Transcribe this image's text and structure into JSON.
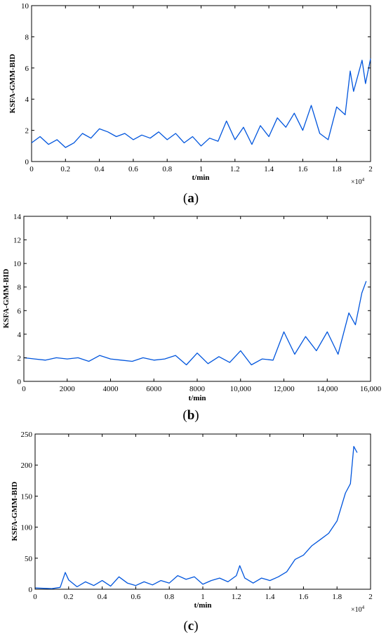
{
  "chart_data": [
    {
      "type": "line",
      "caption_open": "(",
      "caption_letter": "a",
      "caption_close": ")",
      "xlabel": "t/min",
      "ylabel": "KSFA-GMM-BID",
      "xlim": [
        0,
        2
      ],
      "ylim": [
        0,
        10
      ],
      "x_ticks": [
        0,
        0.2,
        0.4,
        0.6,
        0.8,
        1,
        1.2,
        1.4,
        1.6,
        1.8,
        2
      ],
      "x_tick_labels": [
        "0",
        "0.2",
        "0.4",
        "0.6",
        "0.8",
        "1",
        "1.2",
        "1.4",
        "1.6",
        "1.8",
        "2"
      ],
      "y_ticks": [
        0,
        2,
        4,
        6,
        8,
        10
      ],
      "y_tick_labels": [
        "0",
        "2",
        "4",
        "6",
        "8",
        "10"
      ],
      "x_multiplier": "×10",
      "x_multiplier_exp": "4",
      "line_color": "#0055dd",
      "series": [
        {
          "x": [
            0,
            0.05,
            0.1,
            0.15,
            0.2,
            0.25,
            0.3,
            0.35,
            0.4,
            0.45,
            0.5,
            0.55,
            0.6,
            0.65,
            0.7,
            0.75,
            0.8,
            0.85,
            0.9,
            0.95,
            1.0,
            1.05,
            1.1,
            1.15,
            1.2,
            1.25,
            1.3,
            1.35,
            1.4,
            1.45,
            1.5,
            1.55,
            1.6,
            1.65,
            1.7,
            1.75,
            1.8,
            1.85,
            1.88,
            1.9,
            1.95,
            1.97,
            2.0
          ],
          "y": [
            1.2,
            1.6,
            1.1,
            1.4,
            0.9,
            1.2,
            1.8,
            1.5,
            2.1,
            1.9,
            1.6,
            1.8,
            1.4,
            1.7,
            1.5,
            1.9,
            1.4,
            1.8,
            1.2,
            1.6,
            1.0,
            1.5,
            1.3,
            2.6,
            1.4,
            2.2,
            1.1,
            2.3,
            1.6,
            2.8,
            2.2,
            3.1,
            2.0,
            3.6,
            1.8,
            1.4,
            3.5,
            3.0,
            5.8,
            4.5,
            6.5,
            5.0,
            6.6
          ]
        }
      ]
    },
    {
      "type": "line",
      "caption_open": "(",
      "caption_letter": "b",
      "caption_close": ")",
      "xlabel": "t/min",
      "ylabel": "KSFA-GMM-BID",
      "xlim": [
        0,
        16000
      ],
      "ylim": [
        0,
        14
      ],
      "x_ticks": [
        0,
        2000,
        4000,
        6000,
        8000,
        10000,
        12000,
        14000,
        16000
      ],
      "x_tick_labels": [
        "0",
        "2000",
        "4000",
        "6000",
        "8000",
        "10,000",
        "12,000",
        "14,000",
        "16,000"
      ],
      "y_ticks": [
        0,
        2,
        4,
        6,
        8,
        10,
        12,
        14
      ],
      "y_tick_labels": [
        "0",
        "2",
        "4",
        "6",
        "8",
        "10",
        "12",
        "14"
      ],
      "line_color": "#0055dd",
      "series": [
        {
          "x": [
            0,
            500,
            1000,
            1500,
            2000,
            2500,
            3000,
            3500,
            4000,
            4500,
            5000,
            5500,
            6000,
            6500,
            7000,
            7500,
            8000,
            8500,
            9000,
            9500,
            10000,
            10500,
            11000,
            11500,
            12000,
            12500,
            13000,
            13500,
            14000,
            14500,
            15000,
            15300,
            15600,
            15800
          ],
          "y": [
            2.0,
            1.9,
            1.8,
            2.0,
            1.9,
            2.0,
            1.7,
            2.2,
            1.9,
            1.8,
            1.7,
            2.0,
            1.8,
            1.9,
            2.2,
            1.4,
            2.4,
            1.5,
            2.1,
            1.6,
            2.6,
            1.4,
            1.9,
            1.8,
            4.2,
            2.3,
            3.8,
            2.6,
            4.2,
            2.3,
            5.8,
            4.8,
            7.5,
            8.5
          ]
        }
      ]
    },
    {
      "type": "line",
      "caption_open": "(",
      "caption_letter": "c",
      "caption_close": ")",
      "xlabel": "t/min",
      "ylabel": "KSFA-GMM-BID",
      "xlim": [
        0,
        2
      ],
      "ylim": [
        0,
        250
      ],
      "x_ticks": [
        0,
        0.2,
        0.4,
        0.6,
        0.8,
        1,
        1.2,
        1.4,
        1.6,
        1.8,
        2
      ],
      "x_tick_labels": [
        "0",
        "0.2",
        "0.4",
        "0.6",
        "0.8",
        "1",
        "1.2",
        "1.4",
        "1.6",
        "1.8",
        "2"
      ],
      "y_ticks": [
        0,
        50,
        100,
        150,
        200,
        250
      ],
      "y_tick_labels": [
        "0",
        "50",
        "100",
        "150",
        "200",
        "250"
      ],
      "x_multiplier": "×10",
      "x_multiplier_exp": "4",
      "line_color": "#0055dd",
      "series": [
        {
          "x": [
            0,
            0.1,
            0.15,
            0.18,
            0.2,
            0.25,
            0.3,
            0.35,
            0.4,
            0.45,
            0.5,
            0.55,
            0.6,
            0.65,
            0.7,
            0.75,
            0.8,
            0.85,
            0.9,
            0.95,
            1.0,
            1.05,
            1.1,
            1.15,
            1.2,
            1.22,
            1.25,
            1.3,
            1.35,
            1.4,
            1.45,
            1.5,
            1.55,
            1.6,
            1.65,
            1.7,
            1.75,
            1.8,
            1.85,
            1.88,
            1.9,
            1.92
          ],
          "y": [
            2,
            1,
            3,
            27,
            15,
            4,
            12,
            6,
            14,
            5,
            20,
            10,
            6,
            12,
            7,
            14,
            10,
            22,
            16,
            20,
            8,
            14,
            18,
            12,
            22,
            38,
            18,
            10,
            18,
            14,
            20,
            28,
            48,
            55,
            70,
            80,
            90,
            110,
            155,
            170,
            230,
            220
          ]
        }
      ]
    }
  ]
}
